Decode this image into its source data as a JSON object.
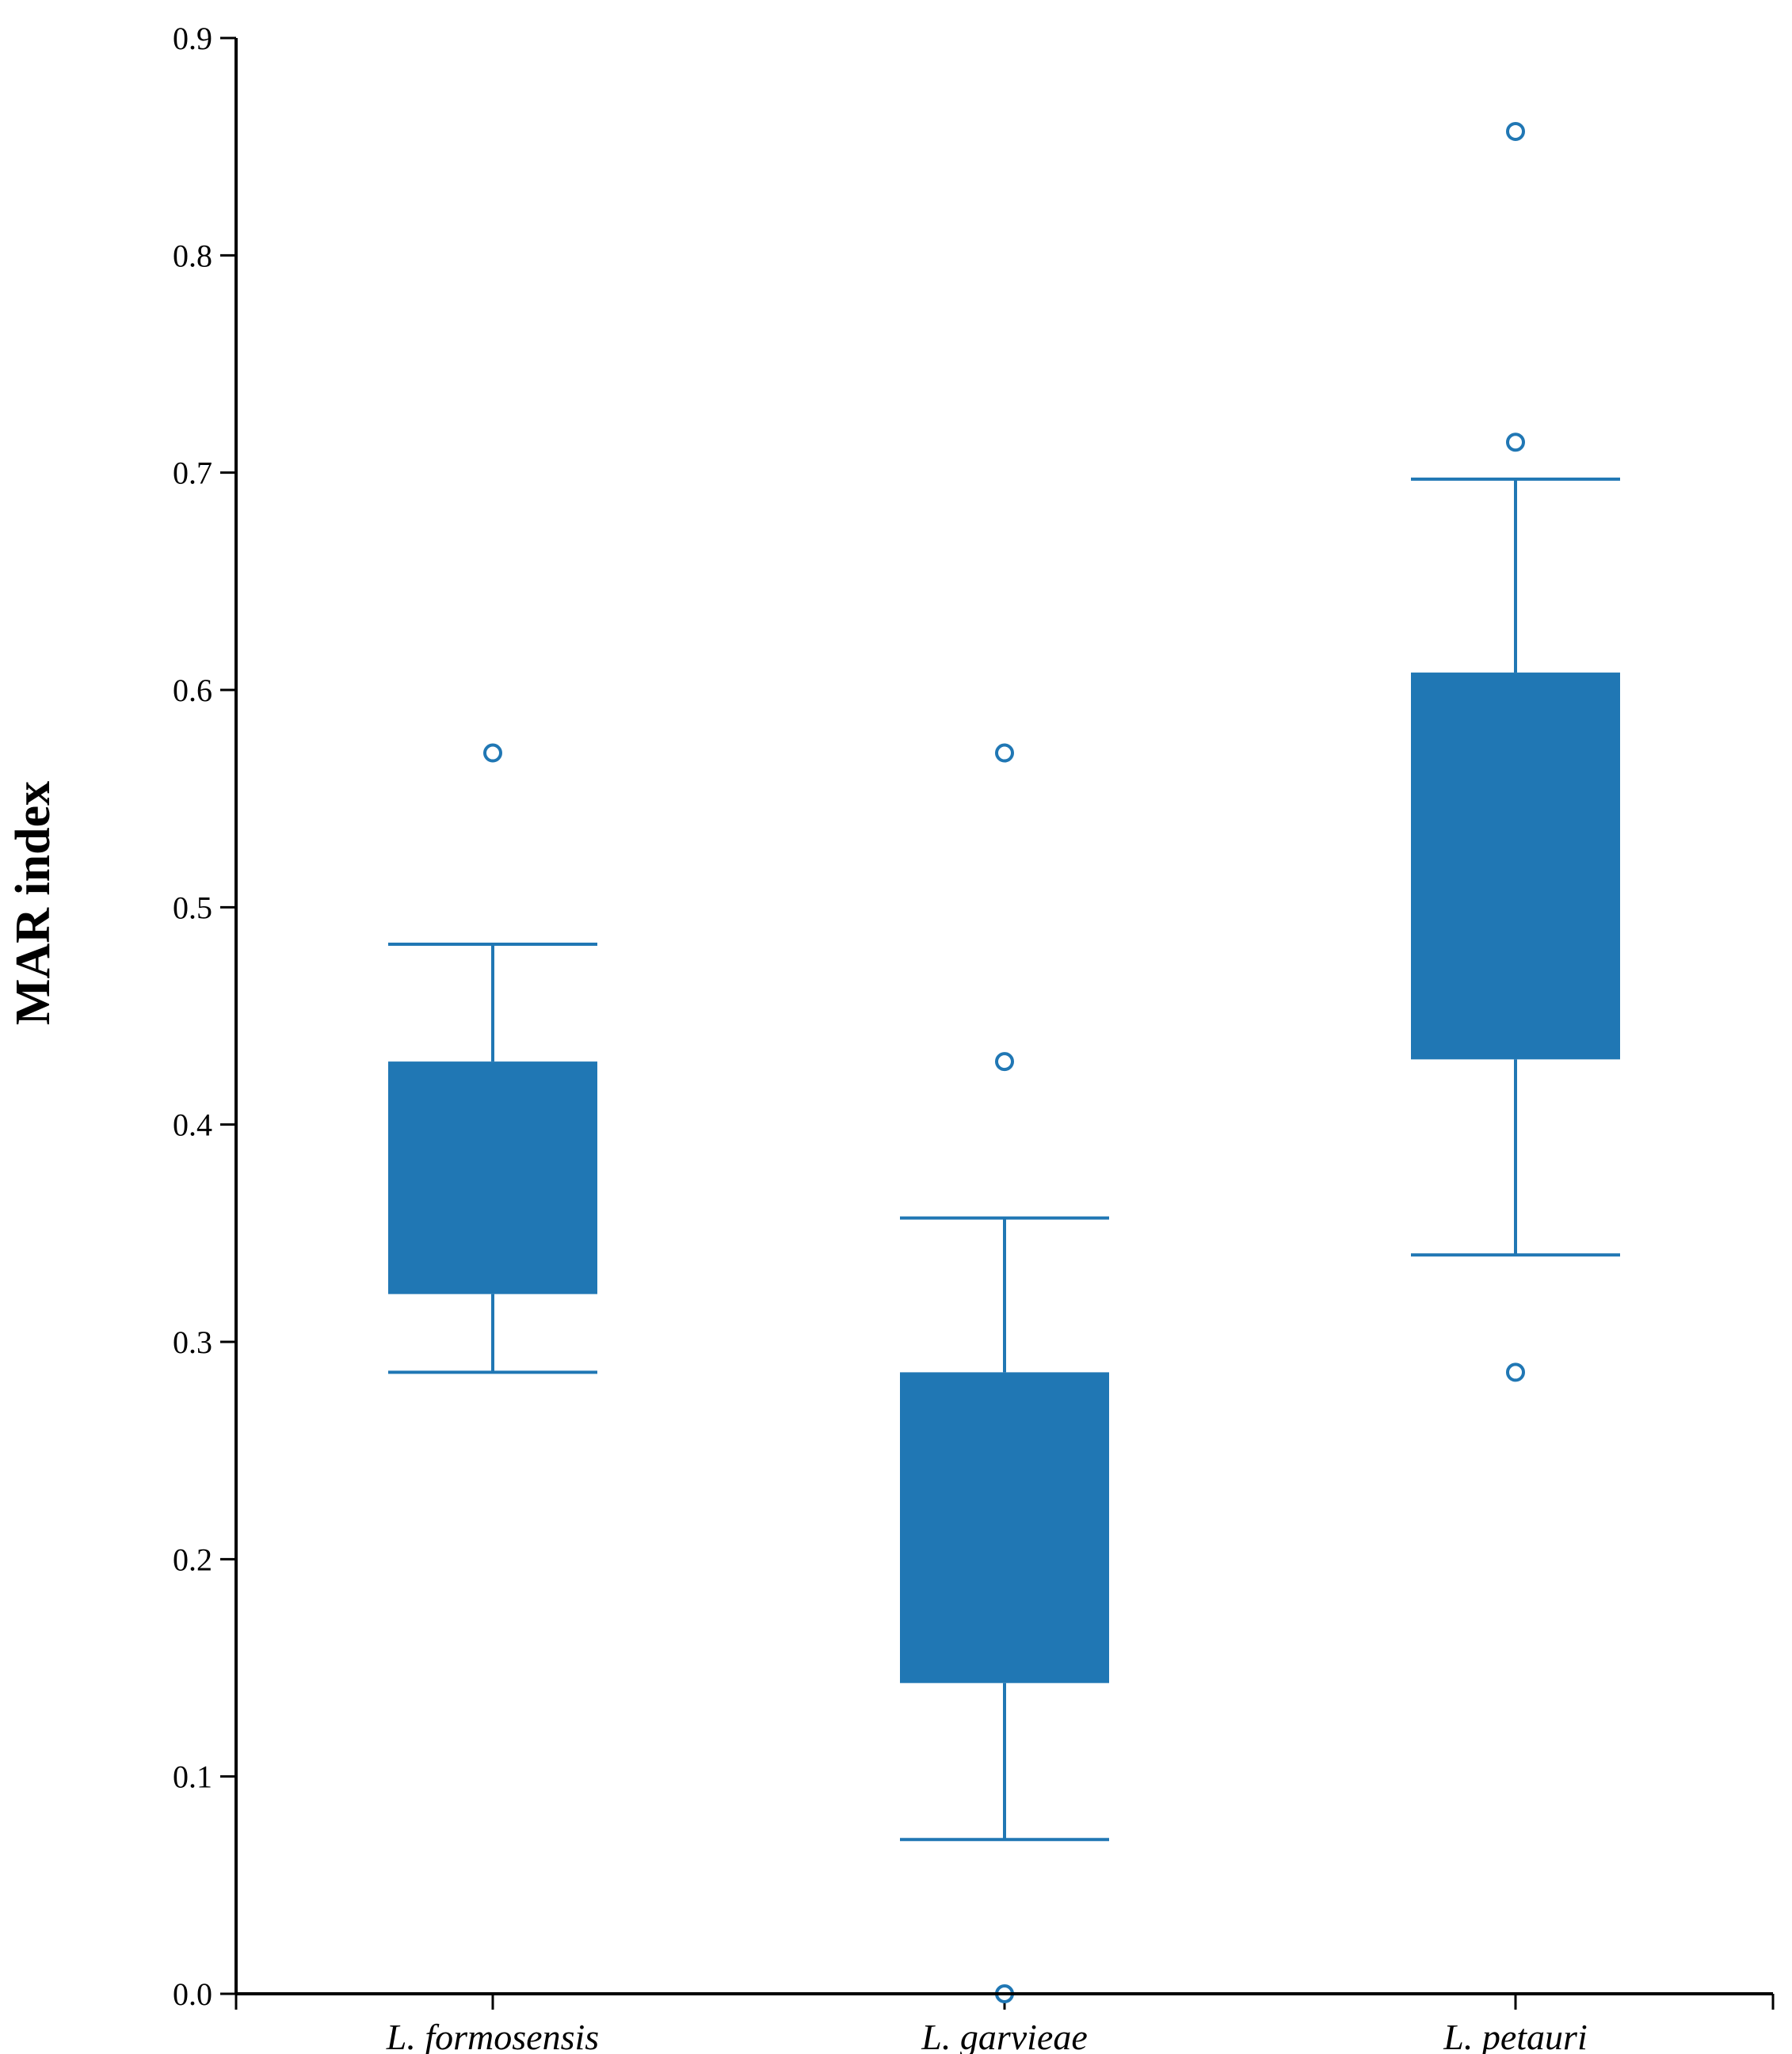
{
  "chart_data": {
    "type": "box",
    "title": "",
    "xlabel": "",
    "ylabel": "MAR index",
    "ylim": [
      0,
      0.9
    ],
    "yticks": [
      "0.0",
      "0.1",
      "0.2",
      "0.3",
      "0.4",
      "0.5",
      "0.6",
      "0.7",
      "0.8",
      "0.9"
    ],
    "categories": [
      "L. formosensis",
      "L. garvieae",
      "L. petauri"
    ],
    "colors": {
      "box": "#2077b4",
      "axis": "#000000"
    },
    "series": [
      {
        "name": "L. formosensis",
        "whisker_low": 0.286,
        "q1": 0.322,
        "q3": 0.429,
        "whisker_high": 0.483,
        "outliers": [
          0.571
        ]
      },
      {
        "name": "L. garvieae",
        "whisker_low": 0.071,
        "q1": 0.143,
        "q3": 0.286,
        "whisker_high": 0.357,
        "outliers": [
          0.571,
          0.429,
          0.0
        ]
      },
      {
        "name": "L. petauri",
        "whisker_low": 0.34,
        "q1": 0.43,
        "q3": 0.608,
        "whisker_high": 0.697,
        "outliers": [
          0.857,
          0.714,
          0.286
        ]
      }
    ]
  }
}
